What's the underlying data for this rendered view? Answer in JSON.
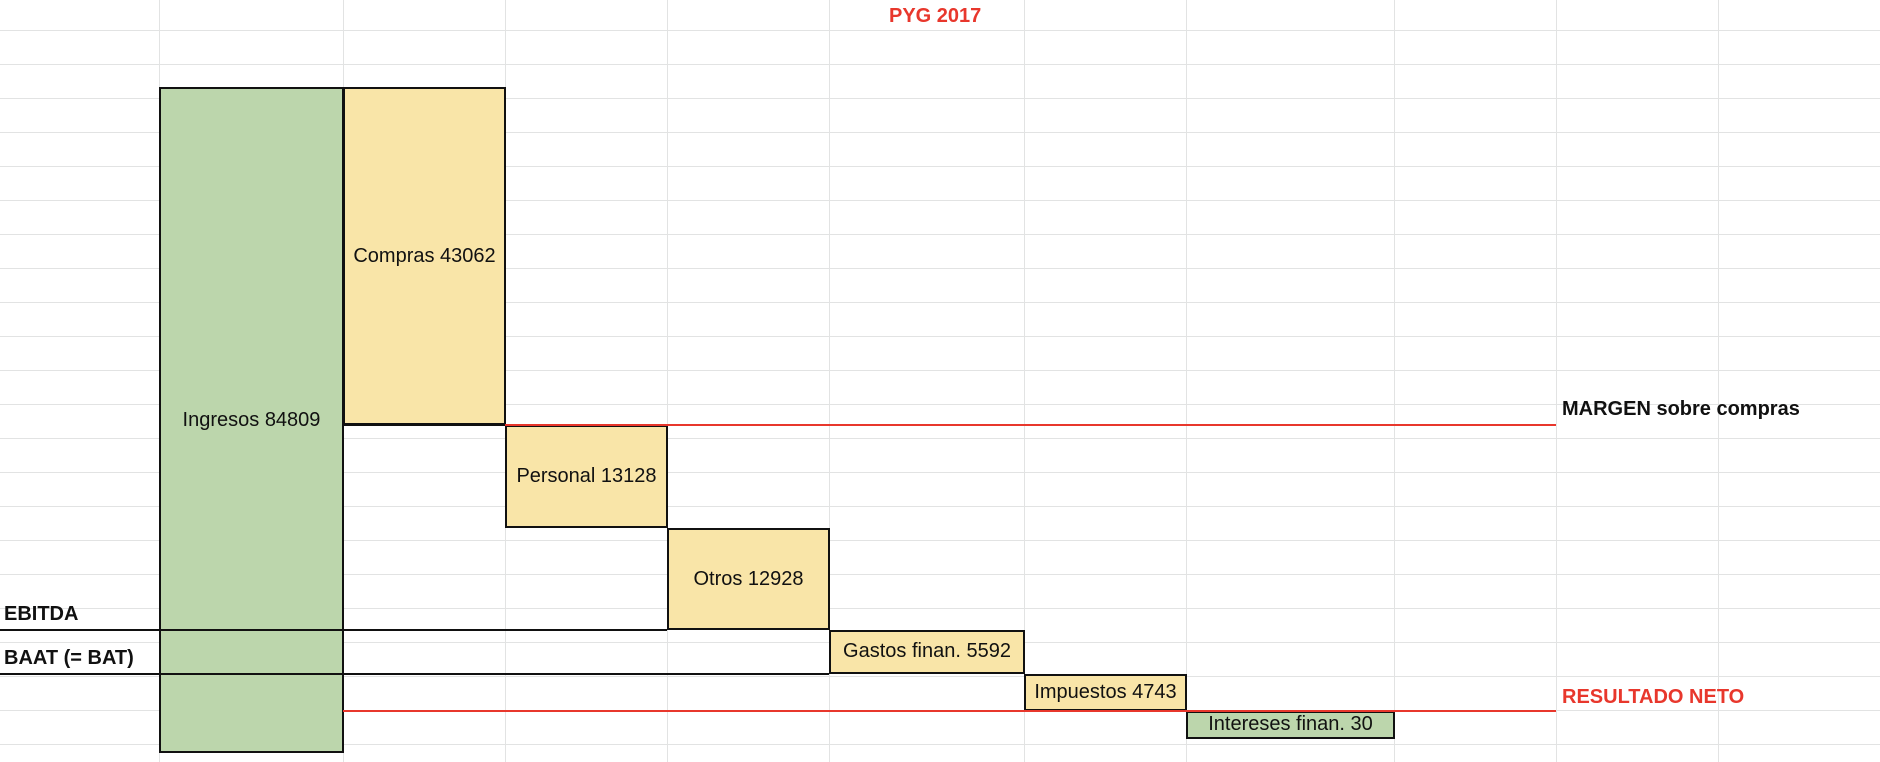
{
  "chart_data": {
    "type": "waterfall",
    "title": "PYG 2017",
    "title_color": "#e8372c",
    "colors": {
      "income": "#bcd6ac",
      "expense": "#f9e5a8",
      "margin_line": "#e8372c",
      "level_line": "#111111"
    },
    "steps": [
      {
        "label": "Ingresos 84809",
        "name": "Ingresos",
        "value": 84809,
        "kind": "income"
      },
      {
        "label": "Compras 43062",
        "name": "Compras",
        "value": -43062,
        "kind": "expense"
      },
      {
        "label": "Personal 13128",
        "name": "Personal",
        "value": -13128,
        "kind": "expense"
      },
      {
        "label": "Otros 12928",
        "name": "Otros",
        "value": -12928,
        "kind": "expense"
      },
      {
        "label": "Gastos finan. 5592",
        "name": "Gastos finan.",
        "value": -5592,
        "kind": "expense"
      },
      {
        "label": "Impuestos 4743",
        "name": "Impuestos",
        "value": -4743,
        "kind": "expense"
      },
      {
        "label": "Intereses finan. 30",
        "name": "Intereses finan.",
        "value": 30,
        "kind": "income"
      }
    ],
    "annotations": {
      "margen": {
        "text": "MARGEN sobre compras",
        "color": "#111111"
      },
      "ebitda": {
        "text": "EBITDA",
        "color": "#111111"
      },
      "baat": {
        "text": "BAAT (= BAT)",
        "color": "#111111"
      },
      "resultado": {
        "text": "RESULTADO NETO",
        "color": "#e8372c"
      }
    }
  }
}
